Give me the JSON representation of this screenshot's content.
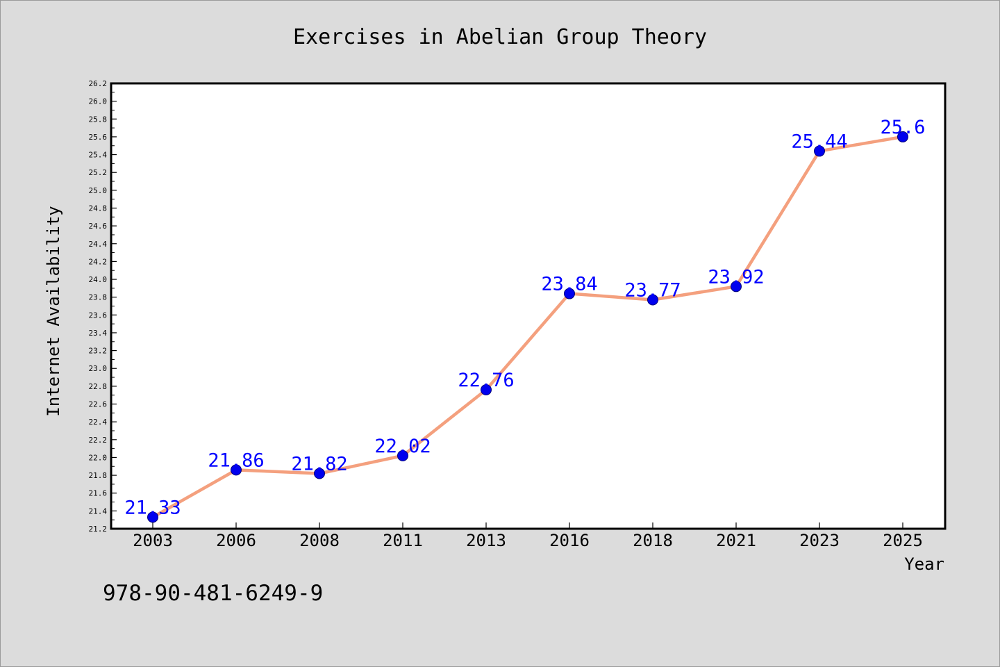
{
  "page": {
    "footer_code": "978-90-481-6249-9"
  },
  "chart_data": {
    "type": "line",
    "title": "Exercises in Abelian Group Theory",
    "xlabel": "Year",
    "ylabel": "Internet Availability",
    "categories": [
      "2003",
      "2006",
      "2008",
      "2011",
      "2013",
      "2016",
      "2018",
      "2021",
      "2023",
      "2025"
    ],
    "series": [
      {
        "values": [
          21.33,
          21.86,
          21.82,
          22.02,
          22.76,
          23.84,
          23.77,
          23.92,
          25.44,
          25.6
        ],
        "labels": [
          "21.33",
          "21.86",
          "21.82",
          "22.02",
          "22.76",
          "23.84",
          "23.77",
          "23.92",
          "25.44",
          "25.6"
        ]
      }
    ],
    "ylim": [
      21.2,
      26.2
    ],
    "yticks": [
      "21.2",
      "21.4",
      "21.6",
      "21.8",
      "22.0",
      "22.2",
      "22.4",
      "22.6",
      "22.8",
      "23.0",
      "23.2",
      "23.4",
      "23.6",
      "23.8",
      "24.0",
      "24.2",
      "24.4",
      "24.6",
      "24.8",
      "25.0",
      "25.2",
      "25.4",
      "25.6",
      "25.8",
      "26.0",
      "26.2"
    ],
    "grid": false,
    "colors": {
      "line": "#f4a07e",
      "marker": "#0000ee",
      "marker_edge": "#00007a",
      "data_label": "#0000ff",
      "background": "#dcdcdc",
      "plot_background": "#ffffff"
    }
  }
}
